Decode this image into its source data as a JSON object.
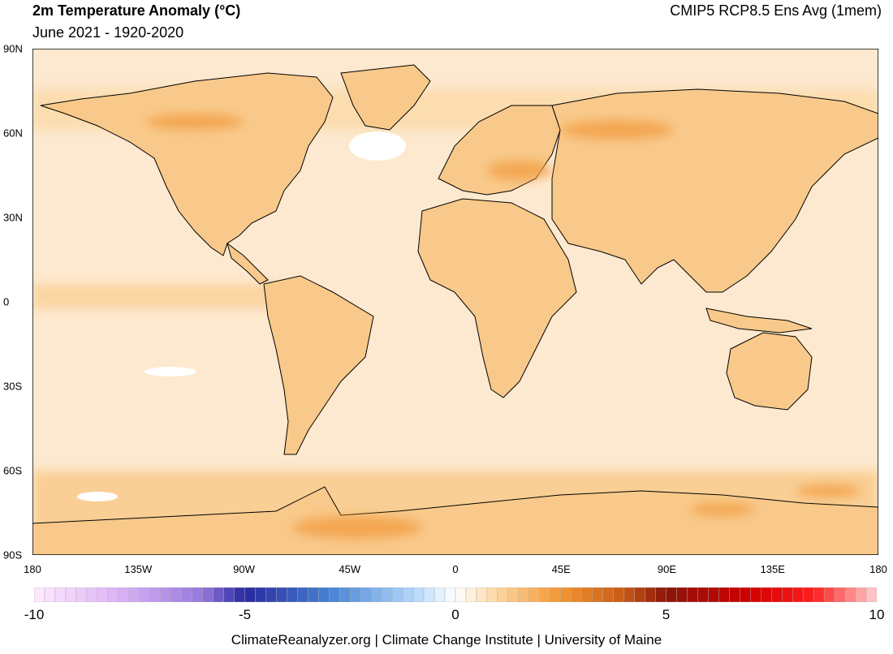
{
  "header": {
    "title": "2m Temperature Anomaly (°C)",
    "subtitle": "June 2021 - 1920-2020",
    "model": "CMIP5 RCP8.5 Ens Avg (1mem)"
  },
  "map": {
    "lat_labels": [
      "90N",
      "60N",
      "30N",
      "0",
      "30S",
      "60S",
      "90S"
    ],
    "lon_labels": [
      "180",
      "135W",
      "90W",
      "45W",
      "0",
      "45E",
      "90E",
      "135E",
      "180"
    ],
    "lat_range": [
      -90,
      90
    ],
    "lon_range": [
      -180,
      180
    ],
    "background_anomaly_color": "#fde9cf",
    "land_anomaly_color": "#f8c98a",
    "warm_hotspot_color": "#f3a14a",
    "cool_spot_color": "#ffffff"
  },
  "colorbar": {
    "tick_labels": [
      "-10",
      "-5",
      "0",
      "5",
      "10"
    ],
    "range": [
      -10,
      10
    ],
    "step": 0.25
  },
  "footer": {
    "text": "ClimateReanalyzer.org | Climate Change Institute | University of Maine"
  }
}
